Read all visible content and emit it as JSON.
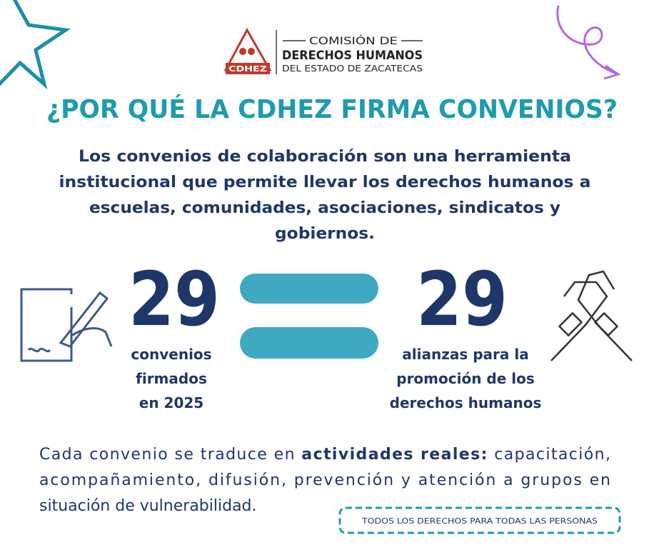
{
  "logo": {
    "badge": "CDHEZ",
    "line1": "COMISIÓN DE",
    "line2": "DERECHOS HUMANOS",
    "line3": "DEL ESTADO DE ZACATECAS"
  },
  "title": "¿POR QUÉ LA CDHEZ FIRMA CONVENIOS?",
  "intro": [
    "Los convenios de colaboración son una herramienta",
    "institucional que permite llevar los derechos humanos a",
    "escuelas, comunidades, asociaciones, sindicatos y",
    "gobiernos."
  ],
  "stats": [
    {
      "value": 29,
      "label": [
        "convenios",
        "firmados",
        "en 2025"
      ]
    },
    {
      "value": 29,
      "label": [
        "alianzas para la",
        "promoción de los",
        "derechos humanos"
      ]
    }
  ],
  "closing": {
    "line1": {
      "before": "Cada convenio se traduce en",
      "bold": "actividades reales:",
      "after": "capacitación,"
    },
    "line2": "acompañamiento, difusión, prevención y atención a grupos en",
    "line3": "situación de vulnerabilidad."
  },
  "badge": "TODOS LOS DERECHOS PARA TODAS LAS PERSONAS"
}
